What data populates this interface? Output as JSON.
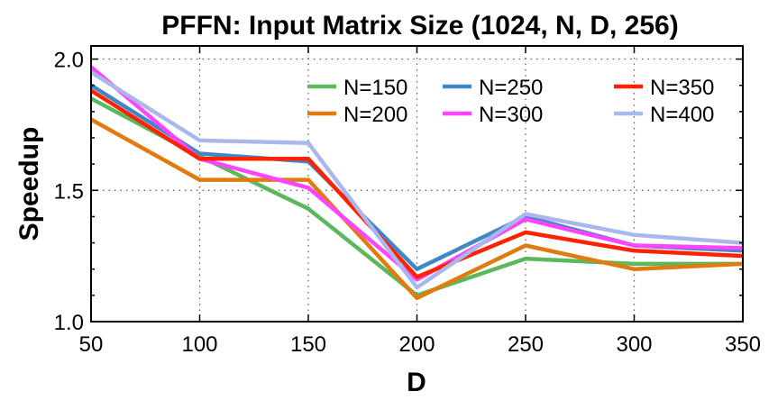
{
  "chart_data": {
    "type": "line",
    "title": "PFFN: Input Matrix Size (1024, N, D, 256)",
    "xlabel": "D",
    "ylabel": "Speedup",
    "x": [
      50,
      100,
      150,
      200,
      250,
      300,
      350
    ],
    "xlim": [
      50,
      350
    ],
    "ylim": [
      1.0,
      2.05
    ],
    "xticks": [
      50,
      100,
      150,
      200,
      250,
      300,
      350
    ],
    "yticks": [
      1.0,
      1.5,
      2.0
    ],
    "ytick_labels": [
      "1.0",
      "1.5",
      "2.0"
    ],
    "grid": true,
    "legend_position": "top-right",
    "series": [
      {
        "name": "N=150",
        "color": "#5cb85c",
        "values": [
          1.85,
          1.63,
          1.43,
          1.1,
          1.24,
          1.22,
          1.22
        ]
      },
      {
        "name": "N=200",
        "color": "#e07b10",
        "values": [
          1.77,
          1.54,
          1.54,
          1.09,
          1.29,
          1.2,
          1.22
        ]
      },
      {
        "name": "N=250",
        "color": "#3f88c5",
        "values": [
          1.9,
          1.64,
          1.61,
          1.2,
          1.4,
          1.29,
          1.27
        ]
      },
      {
        "name": "N=300",
        "color": "#ff44ff",
        "values": [
          1.97,
          1.62,
          1.51,
          1.16,
          1.39,
          1.29,
          1.28
        ]
      },
      {
        "name": "N=350",
        "color": "#ff2200",
        "values": [
          1.88,
          1.62,
          1.62,
          1.17,
          1.34,
          1.27,
          1.25
        ]
      },
      {
        "name": "N=400",
        "color": "#a9b8ec",
        "values": [
          1.95,
          1.69,
          1.68,
          1.13,
          1.41,
          1.33,
          1.3
        ]
      }
    ]
  }
}
